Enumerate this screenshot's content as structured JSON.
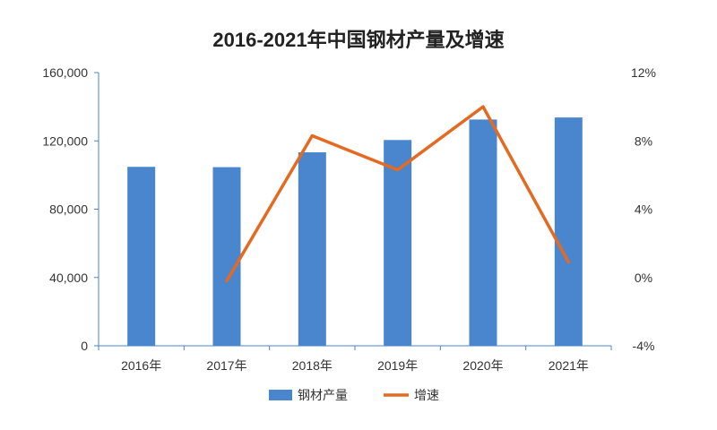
{
  "colors": {
    "bar": "#4A86CE",
    "line": "#E46A22",
    "axis": "#4A86CE",
    "text": "#333333"
  },
  "chart_data": {
    "type": "bar",
    "title": "2016-2021年中国钢材产量及增速",
    "categories": [
      "2016年",
      "2017年",
      "2018年",
      "2019年",
      "2020年",
      "2021年"
    ],
    "series": [
      {
        "name": "钢材产量",
        "type": "bar",
        "axis": "left",
        "values": [
          104800,
          104600,
          113300,
          120500,
          132500,
          133700
        ]
      },
      {
        "name": "增速",
        "type": "line",
        "axis": "right",
        "unit": "%",
        "values": [
          null,
          -0.2,
          8.3,
          6.3,
          10.0,
          0.9
        ]
      }
    ],
    "ylim_left": [
      0,
      160000
    ],
    "ylim_right": [
      -4,
      12
    ],
    "yticks_left": [
      "0",
      "40,000",
      "80,000",
      "120,000",
      "160,000"
    ],
    "yticks_right": [
      "-4%",
      "0%",
      "4%",
      "8%",
      "12%"
    ],
    "grid": false,
    "legend": "bottom-center"
  }
}
